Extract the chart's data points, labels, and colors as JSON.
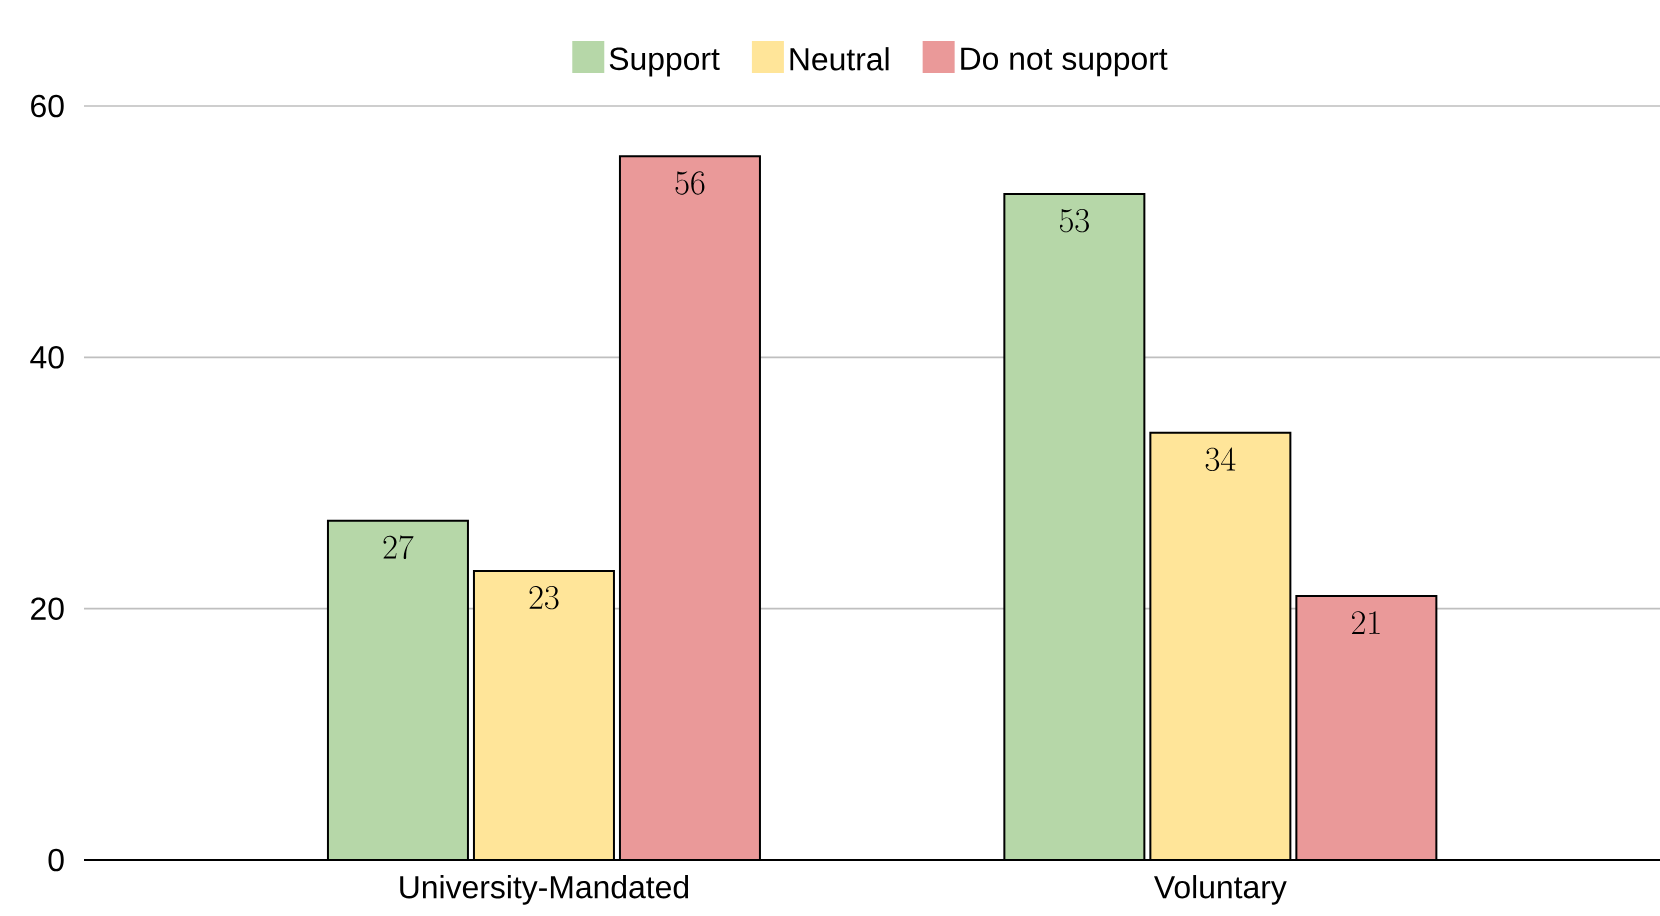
{
  "chart_data": {
    "type": "bar",
    "categories": [
      "University-Mandated",
      "Voluntary"
    ],
    "series": [
      {
        "name": "Support",
        "color": "#b6d7a8",
        "values": [
          27,
          53
        ]
      },
      {
        "name": "Neutral",
        "color": "#ffe599",
        "values": [
          23,
          34
        ]
      },
      {
        "name": "Do not support",
        "color": "#ea9999",
        "values": [
          56,
          21
        ]
      }
    ],
    "ylim": [
      0,
      60
    ],
    "yticks": [
      0,
      20,
      40,
      60
    ],
    "grid": "y",
    "legend": "top",
    "data_labels": true
  }
}
